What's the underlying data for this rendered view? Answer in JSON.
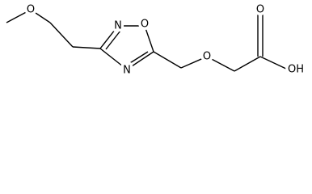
{
  "atoms": [
    {
      "label": "O"
    },
    {
      "label": "N"
    },
    {
      "label": "O"
    },
    {
      "label": "N"
    },
    {
      "label": "O"
    },
    {
      "label": "O"
    },
    {
      "label": "OH"
    }
  ]
}
